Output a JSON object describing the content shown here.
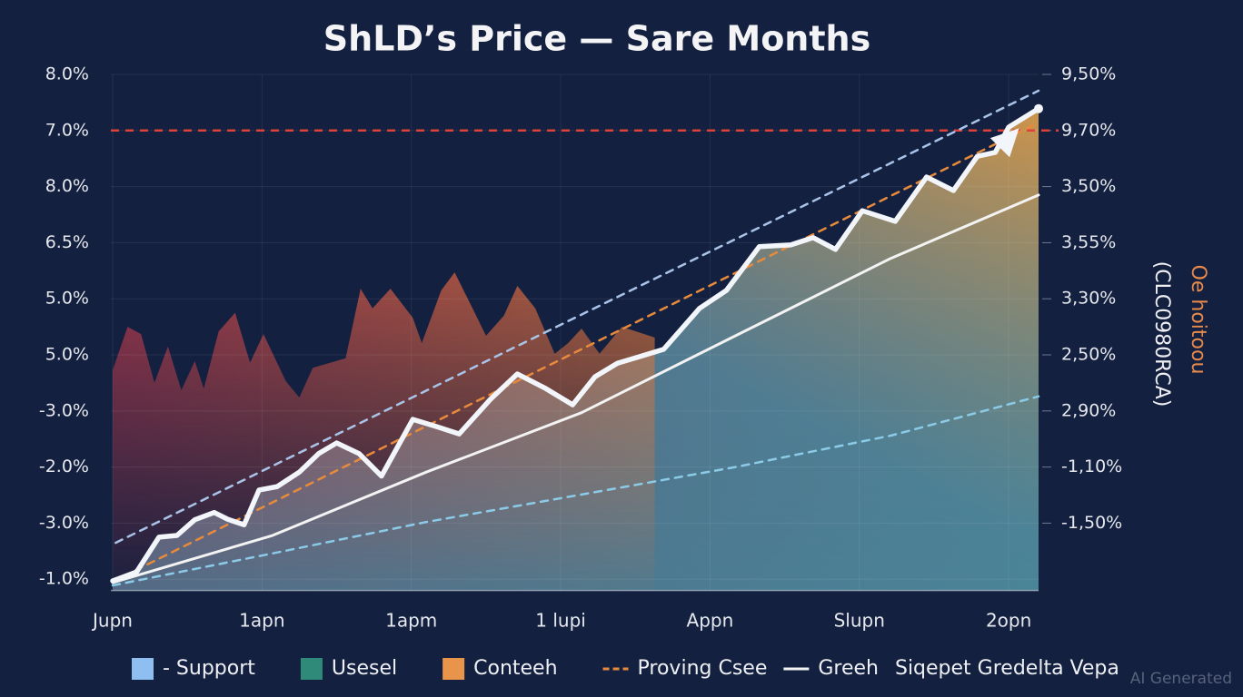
{
  "chart_data": {
    "type": "line",
    "title": "ShLD’s Price — Sare Months",
    "categories": [
      "Jupn",
      "1apn",
      "1apm",
      "1 lupi",
      "Appn",
      "Slupn",
      "2opn"
    ],
    "xlim": [
      0,
      6.2
    ],
    "ylim": [
      -0.2,
      9
    ],
    "yticks": [
      {
        "value": 9,
        "label": "8.0%"
      },
      {
        "value": 8,
        "label": "7.0%"
      },
      {
        "value": 7,
        "label": "8.0%"
      },
      {
        "value": 6,
        "label": "6.5%"
      },
      {
        "value": 5,
        "label": "5.0%"
      },
      {
        "value": 4,
        "label": "5.0%"
      },
      {
        "value": 3,
        "label": "-3.0%"
      },
      {
        "value": 2,
        "label": "-2.0%"
      },
      {
        "value": 1,
        "label": "-3.0%"
      },
      {
        "value": 0,
        "label": "-1.0%"
      }
    ],
    "y2lim": [
      -0.2,
      9
    ],
    "y2ticks": [
      {
        "value": 9,
        "label": "9,50%"
      },
      {
        "value": 8,
        "label": "9,70%"
      },
      {
        "value": 7,
        "label": "3,50%"
      },
      {
        "value": 6,
        "label": "3,55%"
      },
      {
        "value": 5,
        "label": "3,30%"
      },
      {
        "value": 4,
        "label": "2,50%"
      },
      {
        "value": 3,
        "label": "2,90%"
      },
      {
        "value": 2,
        "label": "-1,10%"
      },
      {
        "value": 1,
        "label": "-1,50%"
      }
    ],
    "y2_label": "(CLC0980RCA)",
    "y2_label_2": "Oe hoitoou",
    "grid": true,
    "reference_lines": [
      {
        "value": 8,
        "color": "#e0403a"
      }
    ],
    "series": [
      {
        "color": "#d2504a",
        "style": "area",
        "x": [
          0,
          0.1,
          0.19,
          0.28,
          0.37,
          0.46,
          0.55,
          0.61,
          0.71,
          0.82,
          0.92,
          1.01,
          1.16,
          1.25,
          1.34,
          1.56,
          1.66,
          1.74,
          1.86,
          2.01,
          2.07,
          2.2,
          2.29,
          2.41,
          2.5,
          2.62,
          2.71,
          2.83,
          2.96,
          3.05,
          3.14,
          3.26,
          3.41,
          3.63
        ],
        "values": [
          3.73,
          4.5,
          4.37,
          3.5,
          4.15,
          3.37,
          3.89,
          3.4,
          4.42,
          4.75,
          3.86,
          4.37,
          3.53,
          3.24,
          3.77,
          3.94,
          5.18,
          4.83,
          5.18,
          4.66,
          4.21,
          5.15,
          5.47,
          4.83,
          4.34,
          4.7,
          5.23,
          4.83,
          4.02,
          4.21,
          4.47,
          4.02,
          4.5,
          4.31
        ]
      },
      {
        "color": "#a9c4e8",
        "style": "dashed",
        "x": [
          0.02,
          6.2
        ],
        "values": [
          0.65,
          8.71
        ]
      },
      {
        "color": "#e88a3c",
        "style": "dashed",
        "x": [
          0.07,
          6.2
        ],
        "values": [
          0.05,
          8.14
        ]
      },
      {
        "color": "#f3f3f3",
        "style": "solid",
        "x": [
          0,
          1.07,
          2.1,
          3.14,
          4.17,
          5.21,
          6.2
        ],
        "values": [
          -0.06,
          0.78,
          1.91,
          2.97,
          4.34,
          5.72,
          6.85
        ]
      },
      {
        "color": "#8ccbe8",
        "style": "dashed",
        "x": [
          0,
          1.07,
          2.1,
          3.14,
          4.17,
          5.21,
          6.2
        ],
        "values": [
          -0.11,
          0.46,
          1.02,
          1.51,
          2.0,
          2.56,
          3.26
        ]
      },
      {
        "color": "#f2f6fb",
        "style": "main",
        "x": [
          0,
          0.16,
          0.31,
          0.43,
          0.55,
          0.68,
          0.77,
          0.88,
          0.98,
          1.1,
          1.25,
          1.38,
          1.5,
          1.65,
          1.8,
          2.01,
          2.17,
          2.32,
          2.53,
          2.71,
          2.9,
          3.08,
          3.23,
          3.38,
          3.53,
          3.69,
          3.93,
          4.11,
          4.33,
          4.54,
          4.69,
          4.84,
          5.02,
          5.24,
          5.45,
          5.63,
          5.79,
          5.91,
          6.0,
          6.2
        ],
        "values": [
          -0.03,
          0.13,
          0.75,
          0.78,
          1.06,
          1.19,
          1.07,
          0.97,
          1.59,
          1.65,
          1.91,
          2.24,
          2.43,
          2.24,
          1.84,
          2.85,
          2.72,
          2.59,
          3.21,
          3.66,
          3.4,
          3.11,
          3.61,
          3.85,
          3.97,
          4.1,
          4.83,
          5.15,
          5.93,
          5.96,
          6.09,
          5.88,
          6.57,
          6.38,
          7.17,
          6.93,
          7.54,
          7.61,
          8.06,
          8.39
        ]
      }
    ],
    "legend": [
      {
        "name": "- Support",
        "color": "#8fbff0",
        "marker": "square"
      },
      {
        "name": "Usesel",
        "color": "#2f8a7a",
        "marker": "square"
      },
      {
        "name": "Conteeh",
        "color": "#e8944a",
        "marker": "square"
      },
      {
        "name": "Proving Csee",
        "color": "#e88a3c",
        "marker": "line"
      },
      {
        "name": "Greeh",
        "color": "#f3f3f3",
        "marker": "line"
      },
      {
        "name": "Siqepet Gredelta Vepa",
        "color": "#f3f3f3",
        "marker": "none"
      }
    ],
    "watermark": "AI Generated"
  }
}
